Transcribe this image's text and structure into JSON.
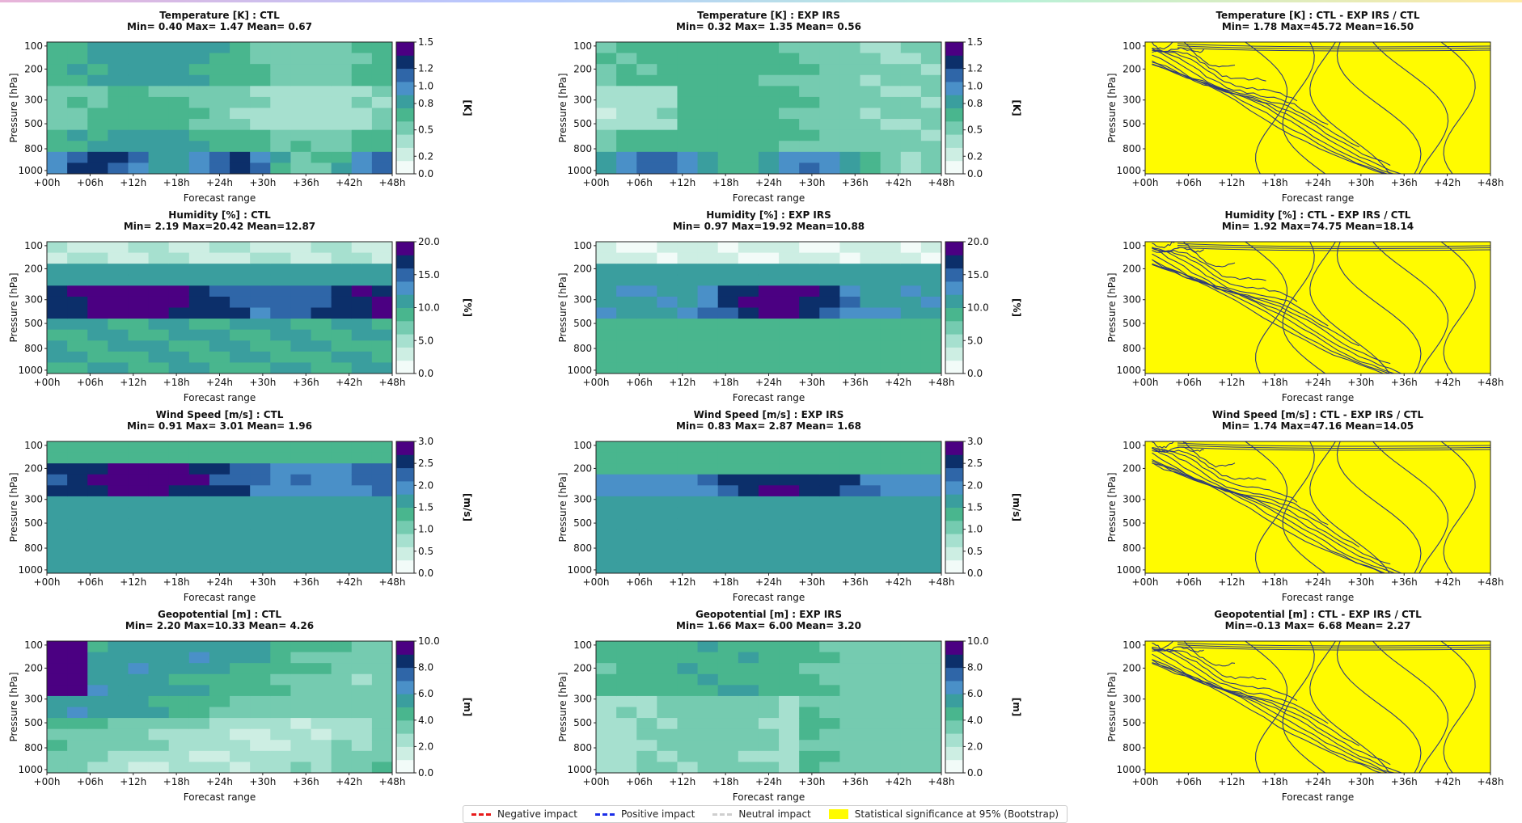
{
  "legend": {
    "negative": {
      "label": "Negative impact",
      "color": "#e81b1b"
    },
    "positive": {
      "label": "Positive impact",
      "color": "#1b2ee8"
    },
    "neutral": {
      "label": "Neutral impact",
      "color": "#cfcfcf"
    },
    "significance": {
      "label": "Statistical significance at 95% (Bootstrap)",
      "color": "#fffb00"
    }
  },
  "colors": {
    "heat_scale": [
      "#f2fbf8",
      "#cdeee3",
      "#a6e0cf",
      "#75cbb0",
      "#49b68e",
      "#3a9e9e",
      "#4a90c8",
      "#2f66a8",
      "#0c2f6a",
      "#4b0082"
    ],
    "significance": "#fffb00",
    "contour": "#2e3a78"
  },
  "chart_data": [
    {
      "type": "heatmap",
      "panel": "temperature-ctl",
      "title": "Temperature [K] : CTL",
      "subtitle": "Min= 0.40 Max= 1.47 Mean= 0.67",
      "xlabel": "Forecast range",
      "ylabel": "Pressure [hPa]",
      "unit": "[K]",
      "x_ticks": [
        "+00h",
        "+06h",
        "+12h",
        "+18h",
        "+24h",
        "+30h",
        "+36h",
        "+42h",
        "+48h"
      ],
      "y_ticks": [
        "100",
        "200",
        "300",
        "500",
        "800",
        "1000"
      ],
      "colorbar_ticks": [
        "1.5",
        "1.2",
        "1.0",
        "0.8",
        "0.5",
        "0.2",
        "0.0"
      ],
      "vmin": 0.0,
      "vmax": 1.5,
      "min": 0.4,
      "max": 1.47,
      "mean": 0.67
    },
    {
      "type": "heatmap",
      "panel": "temperature-exp",
      "title": "Temperature [K] : EXP IRS",
      "subtitle": "Min= 0.32 Max= 1.35 Mean= 0.56",
      "xlabel": "Forecast range",
      "ylabel": "Pressure [hPa]",
      "unit": "[K]",
      "x_ticks": [
        "+00h",
        "+06h",
        "+12h",
        "+18h",
        "+24h",
        "+30h",
        "+36h",
        "+42h",
        "+48h"
      ],
      "y_ticks": [
        "100",
        "200",
        "300",
        "500",
        "800",
        "1000"
      ],
      "colorbar_ticks": [
        "1.5",
        "1.2",
        "1.0",
        "0.8",
        "0.5",
        "0.2",
        "0.0"
      ],
      "vmin": 0.0,
      "vmax": 1.5,
      "min": 0.32,
      "max": 1.35,
      "mean": 0.56
    },
    {
      "type": "contour",
      "panel": "temperature-diff",
      "title": "Temperature [K] : CTL - EXP IRS / CTL",
      "subtitle": "Min= 1.78 Max=45.72 Mean=16.50",
      "xlabel": "Forecast range",
      "ylabel": "Pressure [hPa]",
      "x_ticks": [
        "+00h",
        "+06h",
        "+12h",
        "+18h",
        "+24h",
        "+30h",
        "+36h",
        "+42h",
        "+48h"
      ],
      "y_ticks": [
        "100",
        "200",
        "300",
        "500",
        "800",
        "1000"
      ],
      "min": 1.78,
      "max": 45.72,
      "mean": 16.5
    },
    {
      "type": "heatmap",
      "panel": "humidity-ctl",
      "title": "Humidity [%] : CTL",
      "subtitle": "Min= 2.19 Max=20.42 Mean=12.87",
      "xlabel": "Forecast range",
      "ylabel": "Pressure [hPa]",
      "unit": "[%]",
      "x_ticks": [
        "+00h",
        "+06h",
        "+12h",
        "+18h",
        "+24h",
        "+30h",
        "+36h",
        "+42h",
        "+48h"
      ],
      "y_ticks": [
        "100",
        "200",
        "300",
        "500",
        "800",
        "1000"
      ],
      "colorbar_ticks": [
        "20.0",
        "15.0",
        "10.0",
        "5.0",
        "0.0"
      ],
      "vmin": 0.0,
      "vmax": 20.0,
      "min": 2.19,
      "max": 20.42,
      "mean": 12.87
    },
    {
      "type": "heatmap",
      "panel": "humidity-exp",
      "title": "Humidity [%] : EXP IRS",
      "subtitle": "Min= 0.97 Max=19.92 Mean=10.88",
      "xlabel": "Forecast range",
      "ylabel": "Pressure [hPa]",
      "unit": "[%]",
      "x_ticks": [
        "+00h",
        "+06h",
        "+12h",
        "+18h",
        "+24h",
        "+30h",
        "+36h",
        "+42h",
        "+48h"
      ],
      "y_ticks": [
        "100",
        "200",
        "300",
        "500",
        "800",
        "1000"
      ],
      "colorbar_ticks": [
        "20.0",
        "15.0",
        "10.0",
        "5.0",
        "0.0"
      ],
      "vmin": 0.0,
      "vmax": 20.0,
      "min": 0.97,
      "max": 19.92,
      "mean": 10.88
    },
    {
      "type": "contour",
      "panel": "humidity-diff",
      "title": "Humidity [%] : CTL - EXP IRS / CTL",
      "subtitle": "Min= 1.92 Max=74.75 Mean=18.14",
      "xlabel": "Forecast range",
      "ylabel": "Pressure [hPa]",
      "x_ticks": [
        "+00h",
        "+06h",
        "+12h",
        "+18h",
        "+24h",
        "+30h",
        "+36h",
        "+42h",
        "+48h"
      ],
      "y_ticks": [
        "100",
        "200",
        "300",
        "500",
        "800",
        "1000"
      ],
      "min": 1.92,
      "max": 74.75,
      "mean": 18.14
    },
    {
      "type": "heatmap",
      "panel": "windspeed-ctl",
      "title": "Wind Speed [m/s] : CTL",
      "subtitle": "Min= 0.91 Max= 3.01 Mean= 1.96",
      "xlabel": "Forecast range",
      "ylabel": "Pressure [hPa]",
      "unit": "[m/s]",
      "x_ticks": [
        "+00h",
        "+06h",
        "+12h",
        "+18h",
        "+24h",
        "+30h",
        "+36h",
        "+42h",
        "+48h"
      ],
      "y_ticks": [
        "100",
        "200",
        "300",
        "500",
        "800",
        "1000"
      ],
      "colorbar_ticks": [
        "3.0",
        "2.5",
        "2.0",
        "1.5",
        "1.0",
        "0.5",
        "0.0"
      ],
      "vmin": 0.0,
      "vmax": 3.0,
      "min": 0.91,
      "max": 3.01,
      "mean": 1.96
    },
    {
      "type": "heatmap",
      "panel": "windspeed-exp",
      "title": "Wind Speed [m/s] : EXP IRS",
      "subtitle": "Min= 0.83 Max= 2.87 Mean= 1.68",
      "xlabel": "Forecast range",
      "ylabel": "Pressure [hPa]",
      "unit": "[m/s]",
      "x_ticks": [
        "+00h",
        "+06h",
        "+12h",
        "+18h",
        "+24h",
        "+30h",
        "+36h",
        "+42h",
        "+48h"
      ],
      "y_ticks": [
        "100",
        "200",
        "300",
        "500",
        "800",
        "1000"
      ],
      "colorbar_ticks": [
        "3.0",
        "2.5",
        "2.0",
        "1.5",
        "1.0",
        "0.5",
        "0.0"
      ],
      "vmin": 0.0,
      "vmax": 3.0,
      "min": 0.83,
      "max": 2.87,
      "mean": 1.68
    },
    {
      "type": "contour",
      "panel": "windspeed-diff",
      "title": "Wind Speed [m/s] : CTL - EXP IRS / CTL",
      "subtitle": "Min= 1.74 Max=47.16 Mean=14.05",
      "xlabel": "Forecast range",
      "ylabel": "Pressure [hPa]",
      "x_ticks": [
        "+00h",
        "+06h",
        "+12h",
        "+18h",
        "+24h",
        "+30h",
        "+36h",
        "+42h",
        "+48h"
      ],
      "y_ticks": [
        "100",
        "200",
        "300",
        "500",
        "800",
        "1000"
      ],
      "min": 1.74,
      "max": 47.16,
      "mean": 14.05
    },
    {
      "type": "heatmap",
      "panel": "geopotential-ctl",
      "title": "Geopotential [m] : CTL",
      "subtitle": "Min= 2.20 Max=10.33 Mean= 4.26",
      "xlabel": "Forecast range",
      "ylabel": "Pressure [hPa]",
      "unit": "[m]",
      "x_ticks": [
        "+00h",
        "+06h",
        "+12h",
        "+18h",
        "+24h",
        "+30h",
        "+36h",
        "+42h",
        "+48h"
      ],
      "y_ticks": [
        "100",
        "200",
        "300",
        "500",
        "800",
        "1000"
      ],
      "colorbar_ticks": [
        "10.0",
        "8.0",
        "6.0",
        "4.0",
        "2.0",
        "0.0"
      ],
      "vmin": 0.0,
      "vmax": 10.0,
      "min": 2.2,
      "max": 10.33,
      "mean": 4.26
    },
    {
      "type": "heatmap",
      "panel": "geopotential-exp",
      "title": "Geopotential [m] : EXP IRS",
      "subtitle": "Min= 1.66 Max= 6.00 Mean= 3.20",
      "xlabel": "Forecast range",
      "ylabel": "Pressure [hPa]",
      "unit": "[m]",
      "x_ticks": [
        "+00h",
        "+06h",
        "+12h",
        "+18h",
        "+24h",
        "+30h",
        "+36h",
        "+42h",
        "+48h"
      ],
      "y_ticks": [
        "100",
        "200",
        "300",
        "500",
        "800",
        "1000"
      ],
      "colorbar_ticks": [
        "10.0",
        "8.0",
        "6.0",
        "4.0",
        "2.0",
        "0.0"
      ],
      "vmin": 0.0,
      "vmax": 10.0,
      "min": 1.66,
      "max": 6.0,
      "mean": 3.2
    },
    {
      "type": "contour",
      "panel": "geopotential-diff",
      "title": "Geopotential [m] : CTL - EXP IRS / CTL",
      "subtitle": "Min=-0.13 Max= 6.68 Mean= 2.27",
      "xlabel": "Forecast range",
      "ylabel": "Pressure [hPa]",
      "x_ticks": [
        "+00h",
        "+06h",
        "+12h",
        "+18h",
        "+24h",
        "+30h",
        "+36h",
        "+42h",
        "+48h"
      ],
      "y_ticks": [
        "100",
        "200",
        "300",
        "500",
        "800",
        "1000"
      ],
      "min": -0.13,
      "max": 6.68,
      "mean": 2.27
    }
  ]
}
